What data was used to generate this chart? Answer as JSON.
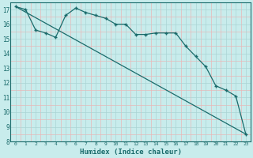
{
  "xlabel": "Humidex (Indice chaleur)",
  "background_color": "#c8ecec",
  "line_color": "#1a6b6b",
  "grid_major_color": "#aad4d4",
  "grid_minor_color": "#e8b8b8",
  "ylim": [
    8,
    17.5
  ],
  "xlim": [
    -0.5,
    23.5
  ],
  "yticks": [
    8,
    9,
    10,
    11,
    12,
    13,
    14,
    15,
    16,
    17
  ],
  "xticks": [
    0,
    1,
    2,
    3,
    4,
    5,
    6,
    7,
    8,
    9,
    10,
    11,
    12,
    13,
    14,
    15,
    16,
    17,
    18,
    19,
    20,
    21,
    22,
    23
  ],
  "line1_x": [
    0,
    1,
    2,
    3,
    4,
    5,
    6,
    7,
    8,
    9,
    10,
    11,
    12,
    13,
    14,
    15,
    16,
    17,
    18,
    19,
    20,
    21,
    22,
    23
  ],
  "line1_y": [
    17.2,
    17.0,
    15.6,
    15.4,
    15.1,
    16.6,
    17.1,
    16.8,
    16.6,
    16.4,
    16.0,
    16.0,
    15.3,
    15.3,
    15.4,
    15.4,
    15.4,
    14.5,
    13.8,
    13.1,
    11.8,
    11.5,
    11.1,
    8.5
  ],
  "line2_x": [
    0,
    23
  ],
  "line2_y": [
    17.2,
    8.5
  ]
}
